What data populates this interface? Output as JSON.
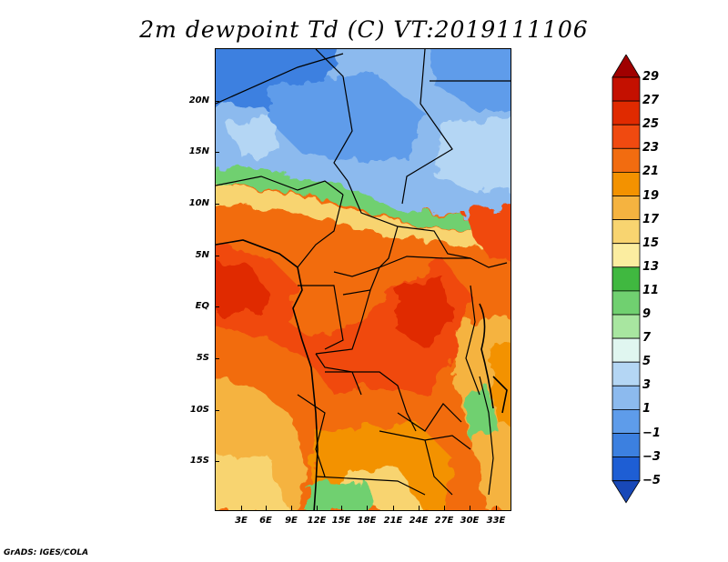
{
  "title": "2m dewpoint Td (C) VT:2019111106",
  "footer": "GrADS: IGES/COLA",
  "map": {
    "lat_labels": [
      "20N",
      "15N",
      "10N",
      "5N",
      "EQ",
      "5S",
      "10S",
      "15S"
    ],
    "lon_labels": [
      "3E",
      "6E",
      "9E",
      "12E",
      "15E",
      "18E",
      "21E",
      "24E",
      "27E",
      "30E",
      "33E"
    ]
  },
  "colorbar": {
    "labels": [
      "29",
      "27",
      "25",
      "23",
      "21",
      "19",
      "17",
      "15",
      "13",
      "11",
      "9",
      "7",
      "5",
      "3",
      "1",
      "−1",
      "−3",
      "−5"
    ],
    "colors": [
      "#a00000",
      "#c41000",
      "#e02a00",
      "#f04a10",
      "#f26c10",
      "#f39200",
      "#f5b340",
      "#f8d470",
      "#fbeda0",
      "#40b840",
      "#70d070",
      "#a8e6a0",
      "#e0f6f0",
      "#b4d6f4",
      "#8cbaee",
      "#5e9cea",
      "#3c80e0",
      "#1e5ed4",
      "#1848b8"
    ]
  }
}
